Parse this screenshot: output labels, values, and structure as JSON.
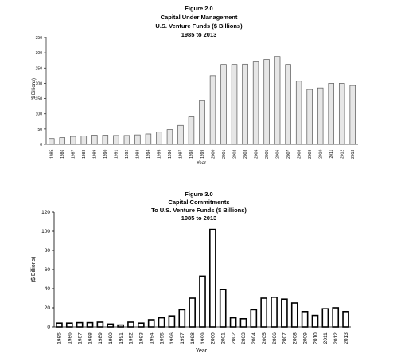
{
  "charts": [
    {
      "figure": "Figure 2.0",
      "title": "Capital Under Management",
      "subtitle": "U.S. Venture Funds ($ Billions)",
      "period": "1985 to 2013"
    },
    {
      "figure": "Figure 3.0",
      "title": "Capital Commitments",
      "subtitle": "To U.S. Venture Funds ($ Billions)",
      "period": "1985 to 2013"
    }
  ],
  "chart_data": [
    {
      "type": "bar",
      "title": "Capital Under Management",
      "subtitle": "U.S. Venture Funds ($ Billions)",
      "xlabel": "Year",
      "ylabel": "($ Billions)",
      "ylim": [
        0,
        350
      ],
      "yticks": [
        0,
        50,
        100,
        150,
        200,
        250,
        300,
        350
      ],
      "grid": false,
      "bar_fill": "#e6e6e6",
      "bar_stroke": "#555555",
      "categories": [
        "1985",
        "1986",
        "1987",
        "1988",
        "1989",
        "1990",
        "1991",
        "1992",
        "1993",
        "1994",
        "1995",
        "1996",
        "1997",
        "1998",
        "1999",
        "2000",
        "2001",
        "2002",
        "2003",
        "2004",
        "2005",
        "2006",
        "2007",
        "2008",
        "2009",
        "2010",
        "2011",
        "2012",
        "2013"
      ],
      "values": [
        19,
        22,
        26,
        27,
        30,
        30,
        29,
        29,
        31,
        34,
        40,
        48,
        62,
        90,
        143,
        225,
        262,
        262,
        263,
        270,
        278,
        288,
        262,
        207,
        180,
        185,
        200,
        200,
        193
      ]
    },
    {
      "type": "bar",
      "title": "Capital Commitments",
      "subtitle": "To U.S. Venture Funds ($ Billions)",
      "xlabel": "Year",
      "ylabel": "($ Billions)",
      "ylim": [
        0,
        120
      ],
      "yticks": [
        0,
        20,
        40,
        60,
        80,
        100,
        120
      ],
      "grid": false,
      "bar_fill": "#ffffff",
      "bar_stroke": "#000000",
      "categories": [
        "1985",
        "1986",
        "1987",
        "1988",
        "1989",
        "1990",
        "1991",
        "1992",
        "1993",
        "1994",
        "1995",
        "1996",
        "1997",
        "1998",
        "1999",
        "2000",
        "2001",
        "2002",
        "2003",
        "2004",
        "2005",
        "2006",
        "2007",
        "2008",
        "2009",
        "2010",
        "2011",
        "2012",
        "2013"
      ],
      "values": [
        4,
        4,
        4.5,
        4.5,
        5,
        3,
        2,
        5,
        4,
        7.5,
        9.5,
        11.5,
        18,
        30,
        53,
        102,
        39,
        9.5,
        8.5,
        18,
        30,
        31,
        29,
        25,
        16,
        12,
        19,
        20,
        16
      ]
    }
  ]
}
